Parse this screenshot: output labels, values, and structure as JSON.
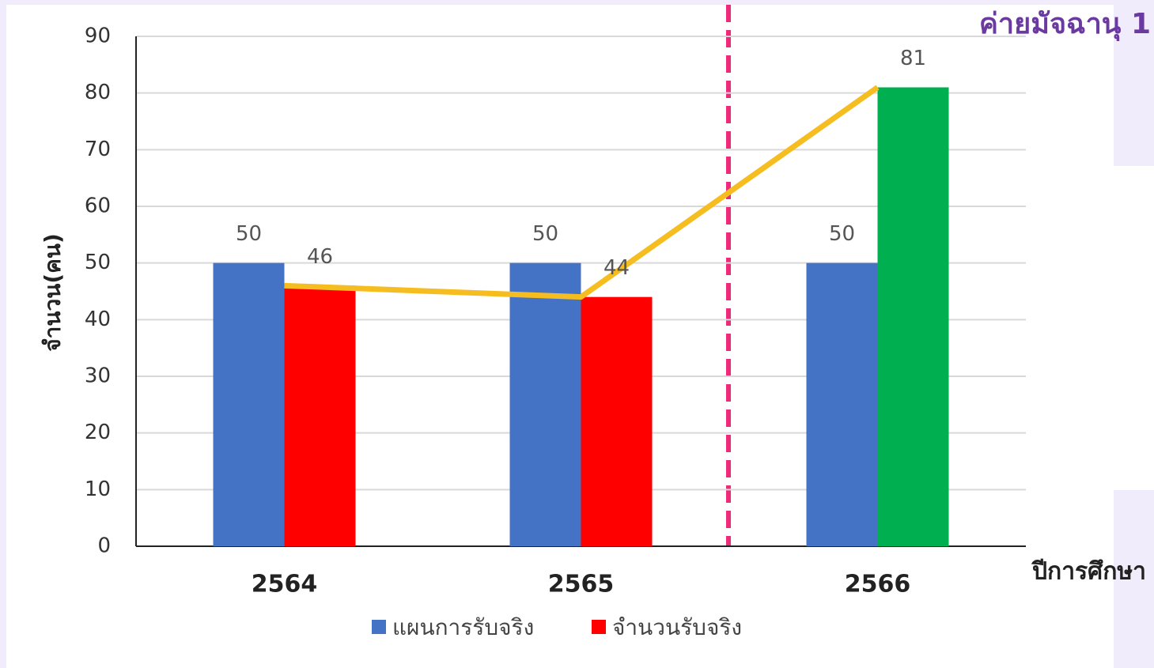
{
  "chart_data": {
    "type": "bar-line",
    "title": "ค่ายมัจฉานุ 1",
    "y_label": "จำนวน(คน)",
    "x_label": "ปีการศึกษา",
    "categories": [
      "2564",
      "2565",
      "2566"
    ],
    "series": [
      {
        "name": "แผนการรับจริง",
        "color": "#4472c4",
        "values": [
          50,
          50,
          50
        ]
      },
      {
        "name": "จำนวนรับจริง",
        "color": "#ff0000",
        "colors": [
          "#ff0000",
          "#ff0000",
          "#00b050"
        ],
        "line_color": "#f5bd1f",
        "values": [
          46,
          44,
          81
        ]
      }
    ],
    "ylim": [
      0,
      90
    ],
    "yticks": [
      0,
      10,
      20,
      30,
      40,
      50,
      60,
      70,
      80,
      90
    ],
    "grid": true
  }
}
